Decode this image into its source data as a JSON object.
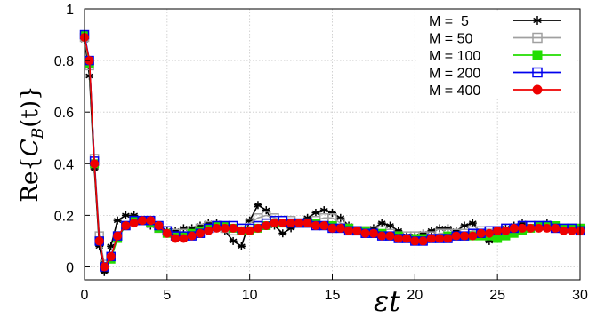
{
  "chart_data": {
    "type": "line",
    "title": "",
    "xlabel": "εt",
    "ylabel": "Re{C_B(t)}",
    "ylabel_parts": {
      "prefix": "Re{",
      "c": "C",
      "sub": "B",
      "arg": "(t)",
      "suffix": "}"
    },
    "xlabel_parts": {
      "eps": "ε",
      "t": "t"
    },
    "xlim": [
      0,
      30
    ],
    "ylim": [
      -0.05,
      1.0
    ],
    "xticks": [
      0,
      5,
      10,
      15,
      20,
      25,
      30
    ],
    "yticks": [
      0,
      0.2,
      0.4,
      0.6,
      0.8,
      1
    ],
    "xtick_labels": [
      "0",
      "5",
      "10",
      "15",
      "20",
      "25",
      "30"
    ],
    "ytick_labels": [
      "0",
      "0.2",
      "0.4",
      "0.6",
      "0.8",
      "1"
    ],
    "grid": true,
    "legend_position": "top-right",
    "series": [
      {
        "name": "M =  5",
        "color": "#000000",
        "marker": "asterisk",
        "x": [
          0,
          0.3,
          0.6,
          0.9,
          1.2,
          1.6,
          2.0,
          2.5,
          3.0,
          3.5,
          4.0,
          4.5,
          5.0,
          5.5,
          6.0,
          6.5,
          7.0,
          7.5,
          8.0,
          8.5,
          9.0,
          9.5,
          10.0,
          10.5,
          11.0,
          11.5,
          12.0,
          12.5,
          13.0,
          13.5,
          14.0,
          14.5,
          15.0,
          15.5,
          16.0,
          16.5,
          17.0,
          17.5,
          18.0,
          18.5,
          19.0,
          19.5,
          20.0,
          20.5,
          21.0,
          21.5,
          22.0,
          22.5,
          23.0,
          23.5,
          24.0,
          24.5,
          25.0,
          25.5,
          26.0,
          26.5,
          27.0,
          27.5,
          28.0,
          28.5,
          29.0,
          29.5,
          30.0
        ],
        "y": [
          0.88,
          0.74,
          0.38,
          0.08,
          -0.02,
          0.08,
          0.18,
          0.2,
          0.2,
          0.18,
          0.16,
          0.16,
          0.14,
          0.14,
          0.15,
          0.15,
          0.16,
          0.17,
          0.17,
          0.14,
          0.1,
          0.08,
          0.18,
          0.24,
          0.22,
          0.16,
          0.13,
          0.15,
          0.17,
          0.19,
          0.21,
          0.22,
          0.21,
          0.19,
          0.16,
          0.14,
          0.13,
          0.15,
          0.17,
          0.16,
          0.14,
          0.12,
          0.12,
          0.13,
          0.14,
          0.15,
          0.15,
          0.14,
          0.16,
          0.17,
          0.13,
          0.1,
          0.14,
          0.15,
          0.16,
          0.17,
          0.15,
          0.16,
          0.17,
          0.15,
          0.14,
          0.15,
          0.15
        ]
      },
      {
        "name": "M = 50",
        "color": "#a0a0a0",
        "marker": "square-open",
        "x": [
          0,
          0.3,
          0.6,
          0.9,
          1.2,
          1.6,
          2.0,
          2.5,
          3.0,
          3.5,
          4.0,
          4.5,
          5.0,
          5.5,
          6.0,
          6.5,
          7.0,
          7.5,
          8.0,
          8.5,
          9.0,
          9.5,
          10.0,
          10.5,
          11.0,
          11.5,
          12.0,
          12.5,
          13.0,
          13.5,
          14.0,
          14.5,
          15.0,
          15.5,
          16.0,
          16.5,
          17.0,
          17.5,
          18.0,
          18.5,
          19.0,
          19.5,
          20.0,
          20.5,
          21.0,
          21.5,
          22.0,
          22.5,
          23.0,
          23.5,
          24.0,
          24.5,
          25.0,
          25.5,
          26.0,
          26.5,
          27.0,
          27.5,
          28.0,
          28.5,
          29.0,
          29.5,
          30.0
        ],
        "y": [
          0.89,
          0.78,
          0.42,
          0.12,
          0.01,
          0.04,
          0.12,
          0.16,
          0.18,
          0.18,
          0.17,
          0.15,
          0.14,
          0.13,
          0.13,
          0.14,
          0.15,
          0.16,
          0.16,
          0.15,
          0.14,
          0.15,
          0.17,
          0.19,
          0.2,
          0.19,
          0.18,
          0.18,
          0.17,
          0.17,
          0.18,
          0.19,
          0.19,
          0.17,
          0.15,
          0.14,
          0.14,
          0.14,
          0.14,
          0.13,
          0.12,
          0.12,
          0.12,
          0.12,
          0.12,
          0.13,
          0.13,
          0.13,
          0.13,
          0.14,
          0.14,
          0.13,
          0.14,
          0.15,
          0.15,
          0.16,
          0.16,
          0.16,
          0.16,
          0.15,
          0.15,
          0.15,
          0.15
        ]
      },
      {
        "name": "M = 100",
        "color": "#22dd00",
        "marker": "square-filled",
        "x": [
          0,
          0.3,
          0.6,
          0.9,
          1.2,
          1.6,
          2.0,
          2.5,
          3.0,
          3.5,
          4.0,
          4.5,
          5.0,
          5.5,
          6.0,
          6.5,
          7.0,
          7.5,
          8.0,
          8.5,
          9.0,
          9.5,
          10.0,
          10.5,
          11.0,
          11.5,
          12.0,
          12.5,
          13.0,
          13.5,
          14.0,
          14.5,
          15.0,
          15.5,
          16.0,
          16.5,
          17.0,
          17.5,
          18.0,
          18.5,
          19.0,
          19.5,
          20.0,
          20.5,
          21.0,
          21.5,
          22.0,
          22.5,
          23.0,
          23.5,
          24.0,
          24.5,
          25.0,
          25.5,
          26.0,
          26.5,
          27.0,
          27.5,
          28.0,
          28.5,
          29.0,
          29.5,
          30.0
        ],
        "y": [
          0.9,
          0.79,
          0.4,
          0.1,
          0.0,
          0.03,
          0.11,
          0.16,
          0.18,
          0.18,
          0.17,
          0.15,
          0.13,
          0.12,
          0.12,
          0.13,
          0.14,
          0.15,
          0.16,
          0.16,
          0.15,
          0.14,
          0.14,
          0.15,
          0.16,
          0.17,
          0.17,
          0.17,
          0.17,
          0.17,
          0.17,
          0.16,
          0.16,
          0.15,
          0.15,
          0.14,
          0.14,
          0.13,
          0.13,
          0.12,
          0.12,
          0.11,
          0.11,
          0.11,
          0.11,
          0.11,
          0.12,
          0.12,
          0.12,
          0.12,
          0.12,
          0.12,
          0.11,
          0.12,
          0.13,
          0.14,
          0.15,
          0.16,
          0.16,
          0.16,
          0.15,
          0.15,
          0.15
        ]
      },
      {
        "name": "M = 200",
        "color": "#0000ee",
        "marker": "square-open",
        "x": [
          0,
          0.3,
          0.6,
          0.9,
          1.2,
          1.6,
          2.0,
          2.5,
          3.0,
          3.5,
          4.0,
          4.5,
          5.0,
          5.5,
          6.0,
          6.5,
          7.0,
          7.5,
          8.0,
          8.5,
          9.0,
          9.5,
          10.0,
          10.5,
          11.0,
          11.5,
          12.0,
          12.5,
          13.0,
          13.5,
          14.0,
          14.5,
          15.0,
          15.5,
          16.0,
          16.5,
          17.0,
          17.5,
          18.0,
          18.5,
          19.0,
          19.5,
          20.0,
          20.5,
          21.0,
          21.5,
          22.0,
          22.5,
          23.0,
          23.5,
          24.0,
          24.5,
          25.0,
          25.5,
          26.0,
          26.5,
          27.0,
          27.5,
          28.0,
          28.5,
          29.0,
          29.5,
          30.0
        ],
        "y": [
          0.9,
          0.8,
          0.41,
          0.1,
          0.0,
          0.04,
          0.12,
          0.16,
          0.18,
          0.18,
          0.18,
          0.16,
          0.14,
          0.12,
          0.12,
          0.12,
          0.13,
          0.15,
          0.16,
          0.16,
          0.16,
          0.15,
          0.15,
          0.16,
          0.17,
          0.18,
          0.18,
          0.17,
          0.17,
          0.17,
          0.16,
          0.16,
          0.15,
          0.15,
          0.14,
          0.14,
          0.13,
          0.13,
          0.12,
          0.12,
          0.11,
          0.11,
          0.1,
          0.1,
          0.11,
          0.11,
          0.11,
          0.12,
          0.12,
          0.13,
          0.13,
          0.14,
          0.14,
          0.15,
          0.15,
          0.16,
          0.16,
          0.16,
          0.16,
          0.15,
          0.15,
          0.15,
          0.14
        ]
      },
      {
        "name": "M = 400",
        "color": "#ee0000",
        "marker": "circle-filled",
        "x": [
          0,
          0.3,
          0.6,
          0.9,
          1.2,
          1.6,
          2.0,
          2.5,
          3.0,
          3.5,
          4.0,
          4.5,
          5.0,
          5.5,
          6.0,
          6.5,
          7.0,
          7.5,
          8.0,
          8.5,
          9.0,
          9.5,
          10.0,
          10.5,
          11.0,
          11.5,
          12.0,
          12.5,
          13.0,
          13.5,
          14.0,
          14.5,
          15.0,
          15.5,
          16.0,
          16.5,
          17.0,
          17.5,
          18.0,
          18.5,
          19.0,
          19.5,
          20.0,
          20.5,
          21.0,
          21.5,
          22.0,
          22.5,
          23.0,
          23.5,
          24.0,
          24.5,
          25.0,
          25.5,
          26.0,
          26.5,
          27.0,
          27.5,
          28.0,
          28.5,
          29.0,
          29.5,
          30.0
        ],
        "y": [
          0.89,
          0.8,
          0.4,
          0.1,
          0.0,
          0.04,
          0.12,
          0.16,
          0.17,
          0.18,
          0.18,
          0.16,
          0.13,
          0.11,
          0.11,
          0.12,
          0.13,
          0.14,
          0.15,
          0.15,
          0.15,
          0.14,
          0.14,
          0.15,
          0.16,
          0.17,
          0.17,
          0.17,
          0.17,
          0.17,
          0.16,
          0.16,
          0.15,
          0.15,
          0.14,
          0.14,
          0.13,
          0.13,
          0.12,
          0.12,
          0.11,
          0.11,
          0.1,
          0.1,
          0.11,
          0.11,
          0.11,
          0.12,
          0.12,
          0.12,
          0.13,
          0.13,
          0.14,
          0.14,
          0.15,
          0.15,
          0.15,
          0.15,
          0.15,
          0.15,
          0.14,
          0.14,
          0.14
        ]
      }
    ]
  }
}
